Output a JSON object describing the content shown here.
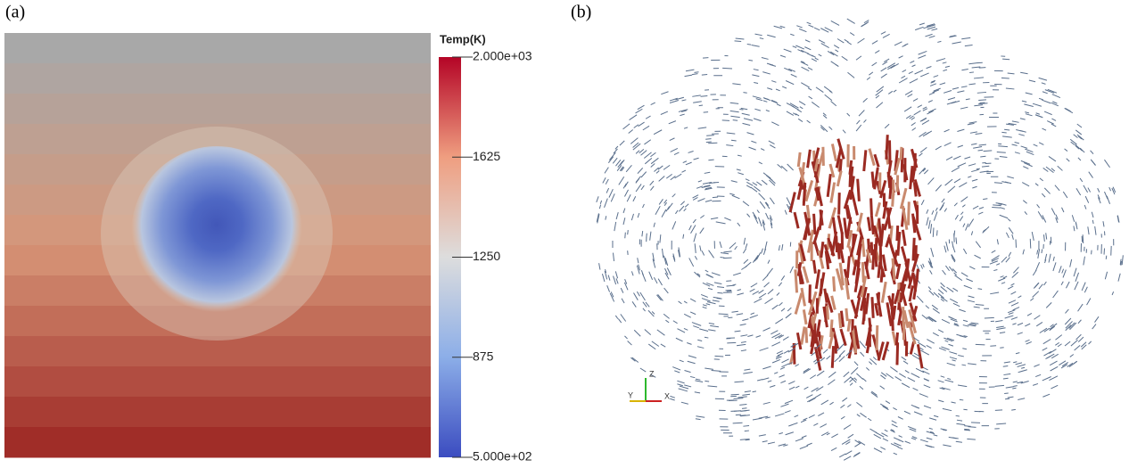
{
  "panels": [
    {
      "label": "(a)"
    },
    {
      "label": "(b)"
    }
  ],
  "colorbar": {
    "title": "Temp(K)",
    "lim": [
      500,
      2000
    ],
    "ticks": [
      {
        "value": 500,
        "label": "5.000e+02"
      },
      875,
      1250,
      1625,
      {
        "value": 2000,
        "label": "2.000e+03"
      }
    ]
  },
  "axes_triad": [
    "Z",
    "Y",
    "X"
  ]
}
